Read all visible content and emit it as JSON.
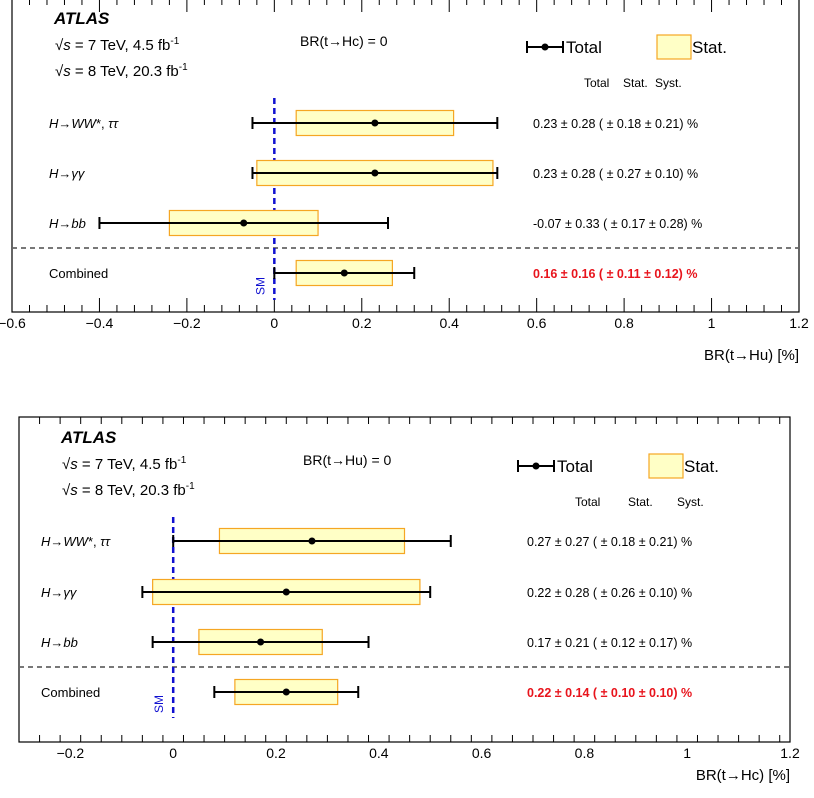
{
  "chart_data": [
    {
      "type": "forest",
      "experiment": "ATLAS",
      "energy_lines": [
        {
          "sqrt": "√",
          "s": "s",
          "text": " = 7 TeV, 4.5 fb",
          "sup": "-1"
        },
        {
          "sqrt": "√",
          "s": "s",
          "text": " = 8 TeV, 20.3 fb",
          "sup": "-1"
        }
      ],
      "condition": "BR(t→Hc) = 0",
      "legend": {
        "total": "Total",
        "stat": "Stat."
      },
      "col_headers": {
        "total": "Total",
        "stat": "Stat.",
        "syst": "Syst."
      },
      "xlabel": "BR(t→Hu) [%]",
      "xlim": [
        -0.6,
        1.2
      ],
      "xticks": [
        "−0.6",
        "−0.4",
        "−0.2",
        "0",
        "0.2",
        "0.4",
        "0.6",
        "0.8",
        "1",
        "1.2"
      ],
      "xtick_values": [
        -0.6,
        -0.4,
        -0.2,
        0,
        0.2,
        0.4,
        0.6,
        0.8,
        1.0,
        1.2
      ],
      "sm_label": "SM",
      "sm_value": 0,
      "rows": [
        {
          "label": "H→WW*, ττ",
          "central": 0.23,
          "total": 0.28,
          "stat": 0.18,
          "syst": 0.21,
          "summary": "0.23 ± 0.28 ( ± 0.18 ± 0.21) %",
          "combined": false
        },
        {
          "label": "H→γγ",
          "central": 0.23,
          "total": 0.28,
          "stat": 0.27,
          "syst": 0.1,
          "summary": "0.23 ± 0.28 ( ± 0.27 ± 0.10) %",
          "combined": false
        },
        {
          "label": "H→bb",
          "central": -0.07,
          "total": 0.33,
          "stat": 0.17,
          "syst": 0.28,
          "summary": "-0.07 ± 0.33 ( ± 0.17 ± 0.28) %",
          "combined": false
        },
        {
          "label": "Combined",
          "central": 0.16,
          "total": 0.16,
          "stat": 0.11,
          "syst": 0.12,
          "summary": "0.16 ± 0.16 ( ± 0.11 ± 0.12) %",
          "combined": true
        }
      ]
    },
    {
      "type": "forest",
      "experiment": "ATLAS",
      "energy_lines": [
        {
          "sqrt": "√",
          "s": "s",
          "text": " = 7 TeV, 4.5 fb",
          "sup": "-1"
        },
        {
          "sqrt": "√",
          "s": "s",
          "text": " = 8 TeV, 20.3 fb",
          "sup": "-1"
        }
      ],
      "condition": "BR(t→Hu) = 0",
      "legend": {
        "total": "Total",
        "stat": "Stat."
      },
      "col_headers": {
        "total": "Total",
        "stat": "Stat.",
        "syst": "Syst."
      },
      "xlabel": "BR(t→Hc) [%]",
      "xlim": [
        -0.3,
        1.2
      ],
      "xticks": [
        "−0.2",
        "0",
        "0.2",
        "0.4",
        "0.6",
        "0.8",
        "1",
        "1.2"
      ],
      "xtick_values": [
        -0.2,
        0,
        0.2,
        0.4,
        0.6,
        0.8,
        1.0,
        1.2
      ],
      "sm_label": "SM",
      "sm_value": 0,
      "rows": [
        {
          "label": "H→WW*, ττ",
          "central": 0.27,
          "total": 0.27,
          "stat": 0.18,
          "syst": 0.21,
          "summary": "0.27 ± 0.27 ( ± 0.18 ± 0.21) %",
          "combined": false
        },
        {
          "label": "H→γγ",
          "central": 0.22,
          "total": 0.28,
          "stat": 0.26,
          "syst": 0.1,
          "summary": "0.22 ± 0.28 ( ± 0.26 ± 0.10) %",
          "combined": false
        },
        {
          "label": "H→bb",
          "central": 0.17,
          "total": 0.21,
          "stat": 0.12,
          "syst": 0.17,
          "summary": "0.17 ± 0.21 ( ± 0.12 ± 0.17) %",
          "combined": false
        },
        {
          "label": "Combined",
          "central": 0.22,
          "total": 0.14,
          "stat": 0.1,
          "syst": 0.1,
          "summary": "0.22 ± 0.14 ( ± 0.10 ± 0.10) %",
          "combined": true
        }
      ]
    }
  ]
}
